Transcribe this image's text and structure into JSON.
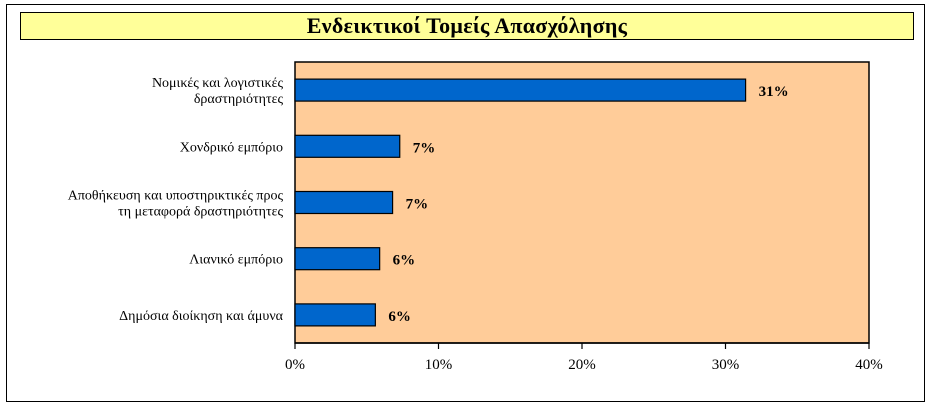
{
  "chart_data": {
    "type": "bar",
    "orientation": "horizontal",
    "title": "Ενδεικτικοί Τομείς Απασχόλησης",
    "categories": [
      [
        "Νομικές και λογιστικές",
        "δραστηριότητες"
      ],
      [
        "Χονδρικό εμπόριο"
      ],
      [
        "Αποθήκευση και υποστηρικτικές προς",
        "τη μεταφορά δραστηριότητες"
      ],
      [
        "Λιανικό εμπόριο"
      ],
      [
        "Δημόσια διοίκηση και άμυνα"
      ]
    ],
    "values": [
      31.4,
      7.3,
      6.8,
      5.9,
      5.6
    ],
    "data_labels": [
      "31%",
      "7%",
      "7%",
      "6%",
      "6%"
    ],
    "xlim": [
      0,
      40
    ],
    "xticks": [
      0,
      10,
      20,
      30,
      40
    ],
    "xtick_labels": [
      "0%",
      "10%",
      "20%",
      "30%",
      "40%"
    ],
    "xlabel": "",
    "ylabel": "",
    "grid": false,
    "legend": "none",
    "colors": {
      "bar": "#0066cc",
      "plot_background": "#ffcc99",
      "title_background": "#ffff99"
    }
  }
}
